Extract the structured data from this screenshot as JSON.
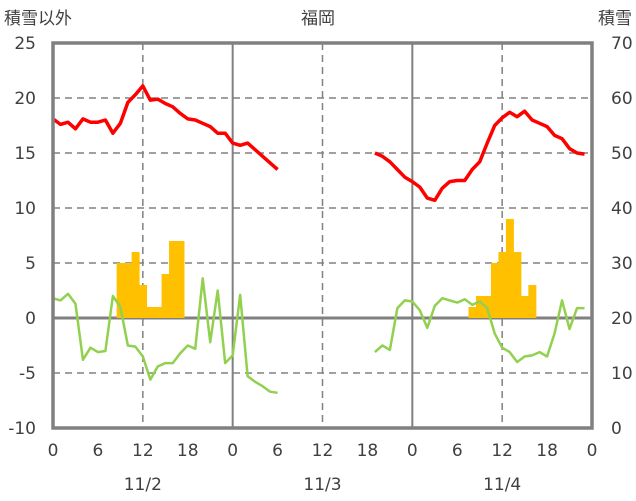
{
  "chart_data": {
    "type": "line",
    "title": "福岡",
    "left_axis_title": "積雪以外",
    "right_axis_title": "積雪",
    "left_ylim": [
      -10,
      25
    ],
    "left_ticks": [
      "-10",
      "-5",
      "0",
      "5",
      "10",
      "15",
      "20",
      "25"
    ],
    "right_ylim": [
      0,
      70
    ],
    "right_ticks": [
      "0",
      "10",
      "20",
      "30",
      "40",
      "50",
      "60",
      "70"
    ],
    "x_range_hours": [
      0,
      72
    ],
    "x_tick_labels": [
      "0",
      "6",
      "12",
      "18",
      "0",
      "6",
      "12",
      "18",
      "0",
      "6",
      "12",
      "18",
      "0"
    ],
    "date_labels": [
      {
        "label": "11/2",
        "hour": 12
      },
      {
        "label": "11/3",
        "hour": 36
      },
      {
        "label": "11/4",
        "hour": 60
      }
    ],
    "grid": true,
    "colors": {
      "red": "#ff0000",
      "green": "#92d050",
      "bar": "#ffc000",
      "grid": "#808080"
    },
    "series": [
      {
        "name": "red",
        "type": "line",
        "axis": "left",
        "segments": [
          {
            "start": 0,
            "values": [
              18.1,
              17.6,
              17.8,
              17.2,
              18.1,
              17.8,
              17.8,
              18.0,
              16.8,
              17.7,
              19.6,
              20.3,
              21.1,
              19.8,
              19.9,
              19.5,
              19.2,
              18.6,
              18.1,
              18.0,
              17.7,
              17.4,
              16.8,
              16.8,
              15.9,
              15.7,
              15.9,
              15.3,
              14.7,
              14.1,
              13.5
            ]
          },
          {
            "start": 43,
            "values": [
              15.0,
              14.7,
              14.2,
              13.5,
              12.8,
              12.4,
              11.9,
              10.9,
              10.7,
              11.8,
              12.4,
              12.5,
              12.5,
              13.5,
              14.2,
              15.9,
              17.5,
              18.2,
              18.7,
              18.3,
              18.8,
              18.0,
              17.7,
              17.4,
              16.6,
              16.3,
              15.4,
              15.0,
              14.9
            ]
          }
        ]
      },
      {
        "name": "green",
        "type": "line",
        "axis": "left",
        "segments": [
          {
            "start": 0,
            "values": [
              1.8,
              1.6,
              2.2,
              1.3,
              -3.8,
              -2.7,
              -3.1,
              -3.0,
              2.0,
              1.0,
              -2.5,
              -2.6,
              -3.5,
              -5.6,
              -4.4,
              -4.1,
              -4.1,
              -3.2,
              -2.5,
              -2.8,
              3.6,
              -2.2,
              2.5,
              -4.1,
              -3.4,
              2.1,
              -5.3,
              -5.8,
              -6.2,
              -6.7,
              -6.8
            ]
          },
          {
            "start": 43,
            "values": [
              -3.1,
              -2.5,
              -2.9,
              0.9,
              1.6,
              1.5,
              0.7,
              -0.9,
              1.1,
              1.8,
              1.6,
              1.4,
              1.7,
              1.2,
              1.5,
              0.9,
              -1.4,
              -2.7,
              -3.1,
              -4.0,
              -3.5,
              -3.4,
              -3.1,
              -3.5,
              -1.4,
              1.6,
              -1.0,
              0.9,
              0.9
            ]
          }
        ]
      },
      {
        "name": "bars",
        "type": "bar",
        "axis": "left",
        "points": [
          [
            9,
            5
          ],
          [
            10,
            5
          ],
          [
            11,
            6
          ],
          [
            12,
            3
          ],
          [
            13,
            1
          ],
          [
            14,
            1
          ],
          [
            15,
            4
          ],
          [
            16,
            7
          ],
          [
            17,
            7
          ],
          [
            56,
            1
          ],
          [
            57,
            2
          ],
          [
            58,
            2
          ],
          [
            59,
            5
          ],
          [
            60,
            6
          ],
          [
            61,
            9
          ],
          [
            62,
            6
          ],
          [
            63,
            2
          ],
          [
            64,
            3
          ]
        ]
      }
    ]
  }
}
